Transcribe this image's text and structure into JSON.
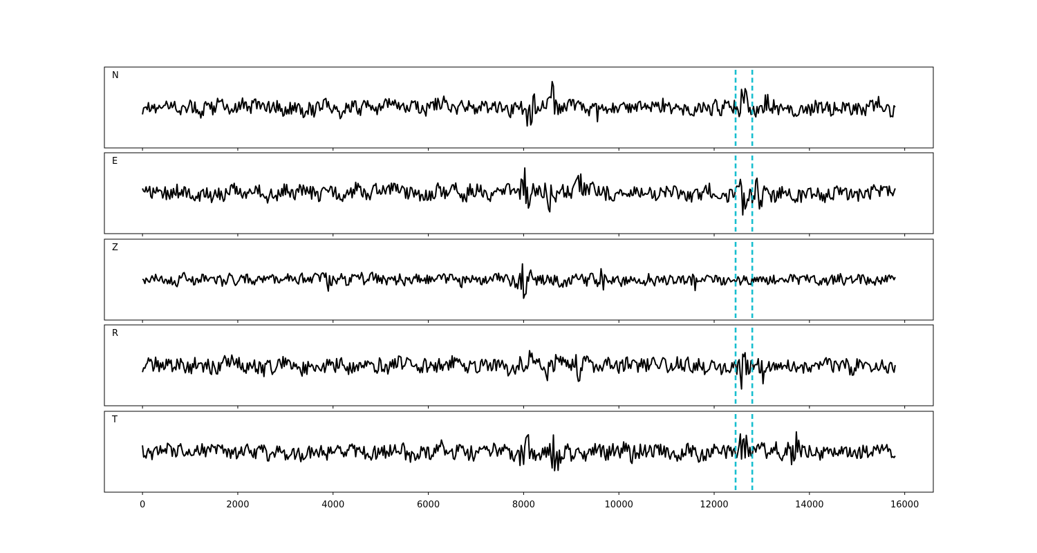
{
  "chart_data": {
    "type": "line",
    "title": "",
    "xlabel": "",
    "ylabel": "",
    "xlim": [
      -800,
      16600
    ],
    "trace_length": 15800,
    "xticks": [
      0,
      2000,
      4000,
      6000,
      8000,
      10000,
      12000,
      14000,
      16000
    ],
    "xtick_labels": [
      "0",
      "2000",
      "4000",
      "6000",
      "8000",
      "10000",
      "12000",
      "14000",
      "16000"
    ],
    "grid": false,
    "legend": "none",
    "trace_color": "#000000",
    "pick_color": "#17becf",
    "picks": [
      12450,
      12800
    ],
    "panels": [
      {
        "label": "N",
        "amplitude": 0.3,
        "bursts": [
          {
            "x": 8100,
            "amp": 0.95
          },
          {
            "x": 8600,
            "amp": 0.8
          },
          {
            "x": 9600,
            "amp": 0.7
          },
          {
            "x": 10900,
            "amp": 0.75
          },
          {
            "x": 12600,
            "amp": 0.9
          },
          {
            "x": 13150,
            "amp": 0.75
          }
        ]
      },
      {
        "label": "E",
        "amplitude": 0.3,
        "bursts": [
          {
            "x": 8050,
            "amp": 0.95
          },
          {
            "x": 8600,
            "amp": 0.85
          },
          {
            "x": 9200,
            "amp": 0.85
          },
          {
            "x": 12600,
            "amp": 0.9
          },
          {
            "x": 12950,
            "amp": 0.85
          }
        ]
      },
      {
        "label": "Z",
        "amplitude": 0.22,
        "bursts": [
          {
            "x": 8000,
            "amp": 0.98
          },
          {
            "x": 3900,
            "amp": 0.55
          },
          {
            "x": 9600,
            "amp": 0.55
          },
          {
            "x": 11600,
            "amp": 0.45
          }
        ]
      },
      {
        "label": "R",
        "amplitude": 0.3,
        "bursts": [
          {
            "x": 8050,
            "amp": 0.95
          },
          {
            "x": 8600,
            "amp": 0.85
          },
          {
            "x": 9200,
            "amp": 0.8
          },
          {
            "x": 12600,
            "amp": 0.9
          },
          {
            "x": 12950,
            "amp": 0.9
          }
        ]
      },
      {
        "label": "T",
        "amplitude": 0.3,
        "bursts": [
          {
            "x": 8050,
            "amp": 0.98
          },
          {
            "x": 8650,
            "amp": 0.85
          },
          {
            "x": 10300,
            "amp": 0.75
          },
          {
            "x": 12600,
            "amp": 0.85
          },
          {
            "x": 13700,
            "amp": 0.75
          }
        ]
      }
    ]
  }
}
